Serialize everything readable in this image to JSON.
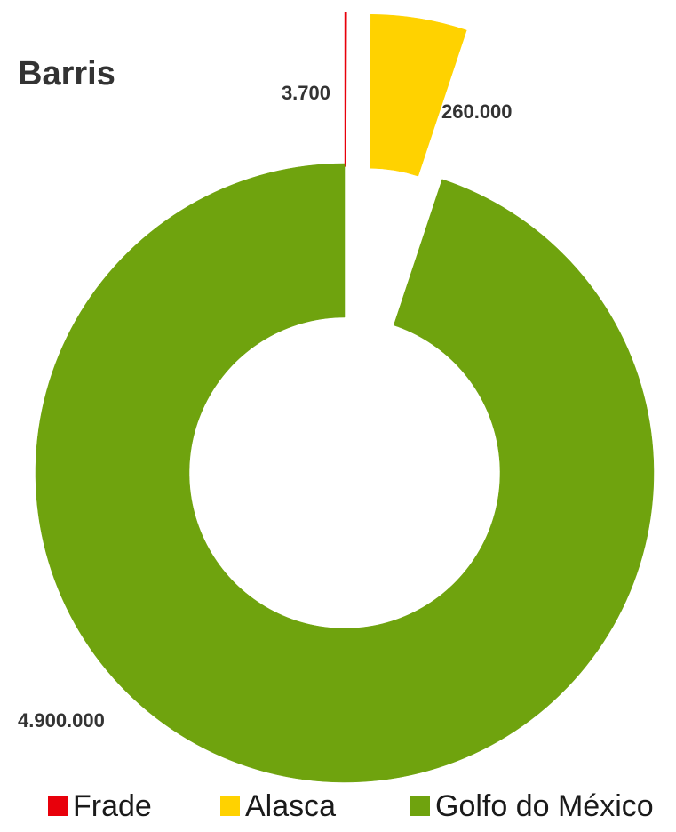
{
  "chart_data": {
    "type": "pie",
    "variant": "donut",
    "title": "Barris",
    "categories": [
      "Frade",
      "Alasca",
      "Golfo do México"
    ],
    "values": [
      3700,
      260000,
      4900000
    ],
    "value_labels": [
      "3.700",
      "260.000",
      "4.900.000"
    ],
    "colors": [
      "#e8000b",
      "#ffd200",
      "#6fa30e"
    ],
    "exploded": [
      true,
      true,
      false
    ],
    "legend_position": "bottom"
  }
}
